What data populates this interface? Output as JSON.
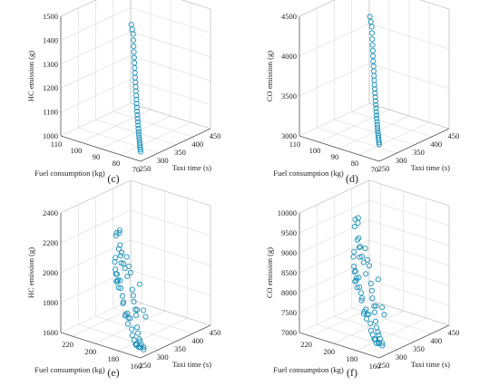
{
  "chart_data": [
    {
      "type": "scatter",
      "panel_label": "(c)",
      "xlabel": "Taxi time (s)",
      "ylabel": "Fuel consumption (kg)",
      "zlabel": "HC emission (g)",
      "xticks": [
        "250",
        "300",
        "350",
        "400",
        "450"
      ],
      "yticks": [
        "70",
        "80",
        "90",
        "100",
        "110"
      ],
      "zticks": [
        "1000",
        "1100",
        "1200",
        "1300",
        "1400",
        "1500"
      ],
      "xlim": [
        250,
        450
      ],
      "ylim": [
        70,
        110
      ],
      "zlim": [
        1000,
        1500
      ],
      "grid": true,
      "marker": "open circle",
      "color": "#1a8fb8",
      "points": [
        [
          250,
          70,
          1040
        ],
        [
          255,
          71,
          1043
        ],
        [
          260,
          72,
          1046
        ],
        [
          265,
          73,
          1049
        ],
        [
          270,
          74,
          1053
        ],
        [
          275,
          75,
          1058
        ],
        [
          280,
          76,
          1063
        ],
        [
          285,
          77,
          1069
        ],
        [
          290,
          78,
          1075
        ],
        [
          295,
          79,
          1082
        ],
        [
          300,
          80,
          1090
        ],
        [
          305,
          81,
          1098
        ],
        [
          310,
          82,
          1106
        ],
        [
          315,
          83,
          1115
        ],
        [
          320,
          84,
          1124
        ],
        [
          325,
          85,
          1134
        ],
        [
          330,
          86,
          1144
        ],
        [
          335,
          87,
          1155
        ],
        [
          340,
          88,
          1166
        ],
        [
          345,
          89,
          1178
        ],
        [
          350,
          90,
          1190
        ],
        [
          355,
          91,
          1203
        ],
        [
          360,
          92,
          1216
        ],
        [
          365,
          93,
          1230
        ],
        [
          370,
          94,
          1245
        ],
        [
          375,
          95,
          1260
        ],
        [
          380,
          96,
          1276
        ],
        [
          385,
          97,
          1293
        ],
        [
          390,
          98,
          1311
        ],
        [
          395,
          99,
          1330
        ],
        [
          400,
          100,
          1350
        ],
        [
          403,
          101,
          1365
        ],
        [
          406,
          102,
          1380
        ]
      ]
    },
    {
      "type": "scatter",
      "panel_label": "(d)",
      "xlabel": "Taxi time (s)",
      "ylabel": "Fuel consumption (kg)",
      "zlabel": "CO emission (g)",
      "xticks": [
        "250",
        "300",
        "350",
        "400",
        "450"
      ],
      "yticks": [
        "70",
        "80",
        "90",
        "100",
        "110"
      ],
      "zticks": [
        "3000",
        "3500",
        "4000",
        "4500"
      ],
      "xlim": [
        250,
        450
      ],
      "ylim": [
        70,
        110
      ],
      "zlim": [
        3000,
        4500
      ],
      "grid": true,
      "marker": "open circle",
      "color": "#1a8fb8",
      "points": [
        [
          250,
          70,
          3210
        ],
        [
          255,
          71,
          3218
        ],
        [
          260,
          72,
          3226
        ],
        [
          265,
          73,
          3236
        ],
        [
          270,
          74,
          3248
        ],
        [
          275,
          75,
          3262
        ],
        [
          280,
          76,
          3277
        ],
        [
          285,
          77,
          3294
        ],
        [
          290,
          78,
          3312
        ],
        [
          295,
          79,
          3332
        ],
        [
          300,
          80,
          3354
        ],
        [
          305,
          81,
          3377
        ],
        [
          310,
          82,
          3401
        ],
        [
          315,
          83,
          3427
        ],
        [
          320,
          84,
          3454
        ],
        [
          325,
          85,
          3483
        ],
        [
          330,
          86,
          3513
        ],
        [
          335,
          87,
          3545
        ],
        [
          340,
          88,
          3579
        ],
        [
          345,
          89,
          3614
        ],
        [
          350,
          90,
          3651
        ],
        [
          355,
          91,
          3690
        ],
        [
          360,
          92,
          3731
        ],
        [
          365,
          93,
          3774
        ],
        [
          370,
          94,
          3819
        ],
        [
          375,
          95,
          3866
        ],
        [
          380,
          96,
          3916
        ],
        [
          385,
          97,
          3968
        ],
        [
          390,
          98,
          4023
        ],
        [
          395,
          99,
          4081
        ],
        [
          400,
          100,
          4142
        ],
        [
          403,
          101,
          4190
        ],
        [
          406,
          102,
          4240
        ]
      ]
    },
    {
      "type": "scatter",
      "panel_label": "(e)",
      "xlabel": "Taxi time (s)",
      "ylabel": "Fuel consumption (kg)",
      "zlabel": "HC emission (g)",
      "xticks": [
        "250",
        "300",
        "350",
        "400",
        "450"
      ],
      "yticks": [
        "160",
        "180",
        "200",
        "220"
      ],
      "zticks": [
        "1600",
        "1800",
        "2000",
        "2200",
        "2400"
      ],
      "xlim": [
        250,
        450
      ],
      "ylim": [
        160,
        230
      ],
      "zlim": [
        1600,
        2400
      ],
      "grid": true,
      "marker": "open circle",
      "color": "#1a8fb8",
      "points": [
        [
          250,
          160,
          1670
        ],
        [
          255,
          162,
          1660
        ],
        [
          260,
          165,
          1650
        ],
        [
          262,
          161,
          1640
        ],
        [
          265,
          168,
          1655
        ],
        [
          268,
          163,
          1645
        ],
        [
          270,
          170,
          1640
        ],
        [
          272,
          166,
          1650
        ],
        [
          275,
          172,
          1635
        ],
        [
          278,
          169,
          1660
        ],
        [
          280,
          175,
          1650
        ],
        [
          282,
          171,
          1665
        ],
        [
          285,
          178,
          1670
        ],
        [
          288,
          174,
          1690
        ],
        [
          290,
          180,
          1700
        ],
        [
          292,
          176,
          1720
        ],
        [
          295,
          183,
          1760
        ],
        [
          297,
          170,
          1800
        ],
        [
          300,
          186,
          1750
        ],
        [
          302,
          180,
          1780
        ],
        [
          305,
          188,
          1700
        ],
        [
          307,
          175,
          1820
        ],
        [
          310,
          190,
          1760
        ],
        [
          312,
          182,
          1800
        ],
        [
          315,
          193,
          1740
        ],
        [
          317,
          185,
          1790
        ],
        [
          320,
          195,
          1720
        ],
        [
          322,
          188,
          1830
        ],
        [
          325,
          198,
          1800
        ],
        [
          327,
          190,
          1860
        ],
        [
          330,
          200,
          1780
        ],
        [
          332,
          186,
          1940
        ],
        [
          335,
          202,
          1820
        ],
        [
          337,
          194,
          1880
        ],
        [
          340,
          205,
          1860
        ],
        [
          342,
          197,
          1980
        ],
        [
          345,
          207,
          1900
        ],
        [
          347,
          200,
          2010
        ],
        [
          350,
          210,
          1840
        ],
        [
          352,
          203,
          1930
        ],
        [
          355,
          212,
          1880
        ],
        [
          357,
          205,
          2050
        ],
        [
          360,
          214,
          1860
        ],
        [
          362,
          208,
          1960
        ],
        [
          365,
          216,
          1900
        ],
        [
          367,
          211,
          1980
        ],
        [
          370,
          218,
          1840
        ],
        [
          372,
          214,
          2040
        ],
        [
          375,
          220,
          1880
        ],
        [
          377,
          216,
          1960
        ],
        [
          380,
          222,
          1900
        ],
        [
          382,
          218,
          2000
        ],
        [
          385,
          224,
          1940
        ],
        [
          387,
          220,
          2060
        ],
        [
          390,
          225,
          1960
        ],
        [
          393,
          223,
          2020
        ],
        [
          395,
          226,
          2100
        ],
        [
          398,
          224,
          2120
        ],
        [
          400,
          227,
          2110
        ],
        [
          402,
          225,
          2130
        ]
      ]
    },
    {
      "type": "scatter",
      "panel_label": "(f)",
      "xlabel": "Taxi time (s)",
      "ylabel": "Fuel consumption (kg)",
      "zlabel": "CO emission (g)",
      "xticks": [
        "250",
        "300",
        "350",
        "400",
        "450"
      ],
      "yticks": [
        "160",
        "180",
        "200",
        "220"
      ],
      "zticks": [
        "7000",
        "7500",
        "8000",
        "8500",
        "9000",
        "9500",
        "10000"
      ],
      "xlim": [
        250,
        450
      ],
      "ylim": [
        160,
        230
      ],
      "zlim": [
        7000,
        10000
      ],
      "grid": true,
      "marker": "open circle",
      "color": "#1a8fb8",
      "points": [
        [
          250,
          160,
          7380
        ],
        [
          255,
          162,
          7320
        ],
        [
          258,
          165,
          7290
        ],
        [
          262,
          161,
          7250
        ],
        [
          265,
          168,
          7330
        ],
        [
          268,
          163,
          7270
        ],
        [
          270,
          170,
          7300
        ],
        [
          272,
          166,
          7340
        ],
        [
          275,
          172,
          7260
        ],
        [
          278,
          169,
          7380
        ],
        [
          280,
          175,
          7320
        ],
        [
          282,
          171,
          7420
        ],
        [
          285,
          178,
          7380
        ],
        [
          288,
          174,
          7480
        ],
        [
          290,
          180,
          7520
        ],
        [
          292,
          176,
          7600
        ],
        [
          295,
          183,
          7700
        ],
        [
          297,
          170,
          7800
        ],
        [
          300,
          186,
          7650
        ],
        [
          302,
          180,
          7750
        ],
        [
          305,
          188,
          7500
        ],
        [
          307,
          175,
          7900
        ],
        [
          310,
          190,
          7700
        ],
        [
          312,
          182,
          7850
        ],
        [
          315,
          193,
          7600
        ],
        [
          317,
          185,
          7800
        ],
        [
          320,
          195,
          7500
        ],
        [
          322,
          188,
          7950
        ],
        [
          325,
          198,
          7850
        ],
        [
          327,
          190,
          8100
        ],
        [
          330,
          200,
          7750
        ],
        [
          332,
          186,
          8400
        ],
        [
          335,
          202,
          7900
        ],
        [
          337,
          194,
          8200
        ],
        [
          340,
          205,
          8000
        ],
        [
          342,
          197,
          8600
        ],
        [
          345,
          207,
          8200
        ],
        [
          347,
          200,
          8700
        ],
        [
          350,
          210,
          7900
        ],
        [
          352,
          203,
          8300
        ],
        [
          355,
          212,
          8100
        ],
        [
          357,
          205,
          8900
        ],
        [
          360,
          214,
          8000
        ],
        [
          362,
          208,
          8500
        ],
        [
          365,
          216,
          8200
        ],
        [
          367,
          211,
          8600
        ],
        [
          370,
          218,
          7900
        ],
        [
          372,
          214,
          8800
        ],
        [
          375,
          220,
          8100
        ],
        [
          377,
          216,
          8500
        ],
        [
          380,
          222,
          8200
        ],
        [
          382,
          218,
          8700
        ],
        [
          385,
          224,
          8400
        ],
        [
          387,
          220,
          8900
        ],
        [
          390,
          225,
          8500
        ],
        [
          393,
          223,
          8800
        ],
        [
          395,
          226,
          9100
        ],
        [
          398,
          224,
          9200
        ],
        [
          400,
          227,
          9250
        ],
        [
          402,
          225,
          9300
        ]
      ]
    }
  ]
}
